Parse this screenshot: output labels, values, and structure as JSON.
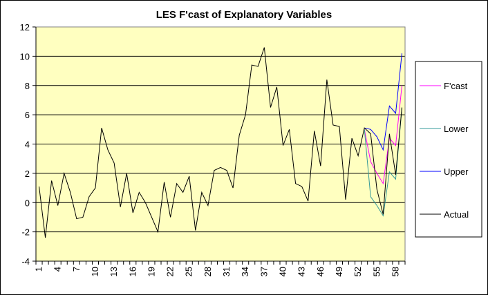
{
  "chart_data": {
    "type": "line",
    "title": "LES F'cast of Explanatory Variables",
    "xlabel": "",
    "ylabel": "",
    "ylim": [
      -4,
      12
    ],
    "y_ticks": [
      -4,
      -2,
      0,
      2,
      4,
      6,
      8,
      10,
      12
    ],
    "x_tick_labels": [
      "1",
      "4",
      "7",
      "10",
      "13",
      "16",
      "19",
      "22",
      "25",
      "28",
      "31",
      "34",
      "37",
      "40",
      "43",
      "46",
      "49",
      "52",
      "55",
      "58"
    ],
    "grid": "horizontal",
    "legend_position": "right",
    "plot_background": "#FFFFC0",
    "series": [
      {
        "name": "F'cast",
        "color": "#FF00FF",
        "x": [
          53,
          54,
          55,
          56,
          57,
          58,
          59
        ],
        "values": [
          5.0,
          2.8,
          2.0,
          1.3,
          4.4,
          3.9,
          8.0
        ]
      },
      {
        "name": "Lower",
        "color": "#339999",
        "x": [
          53,
          54,
          55,
          56,
          57,
          58,
          59
        ],
        "values": [
          5.0,
          0.4,
          -0.2,
          -0.9,
          2.1,
          1.6,
          6.5
        ]
      },
      {
        "name": "Upper",
        "color": "#0000FF",
        "x": [
          53,
          54,
          55,
          56,
          57,
          58,
          59
        ],
        "values": [
          5.1,
          5.0,
          4.5,
          3.6,
          6.6,
          6.1,
          10.2
        ]
      },
      {
        "name": "Actual",
        "color": "#000000",
        "x": [
          1,
          2,
          3,
          4,
          5,
          6,
          7,
          8,
          9,
          10,
          11,
          12,
          13,
          14,
          15,
          16,
          17,
          18,
          19,
          20,
          21,
          22,
          23,
          24,
          25,
          26,
          27,
          28,
          29,
          30,
          31,
          32,
          33,
          34,
          35,
          36,
          37,
          38,
          39,
          40,
          41,
          42,
          43,
          44,
          45,
          46,
          47,
          48,
          49,
          50,
          51,
          52,
          53,
          54,
          55,
          56,
          57,
          58,
          59
        ],
        "values": [
          1.1,
          -2.4,
          1.5,
          -0.2,
          2.0,
          0.7,
          -1.1,
          -1.0,
          0.4,
          1.0,
          5.1,
          3.6,
          2.7,
          -0.3,
          2.0,
          -0.7,
          0.7,
          0.0,
          -1.0,
          -2.0,
          1.4,
          -1.0,
          1.3,
          0.7,
          1.8,
          -1.9,
          0.7,
          -0.2,
          2.2,
          2.4,
          2.2,
          1.0,
          4.6,
          6.0,
          9.4,
          9.3,
          10.6,
          6.5,
          7.9,
          3.9,
          5.0,
          1.3,
          1.1,
          0.1,
          4.9,
          2.5,
          8.4,
          5.3,
          5.2,
          0.2,
          4.4,
          3.2,
          5.1,
          4.7,
          0.9,
          -0.8,
          4.7,
          1.9,
          6.5
        ]
      }
    ]
  }
}
